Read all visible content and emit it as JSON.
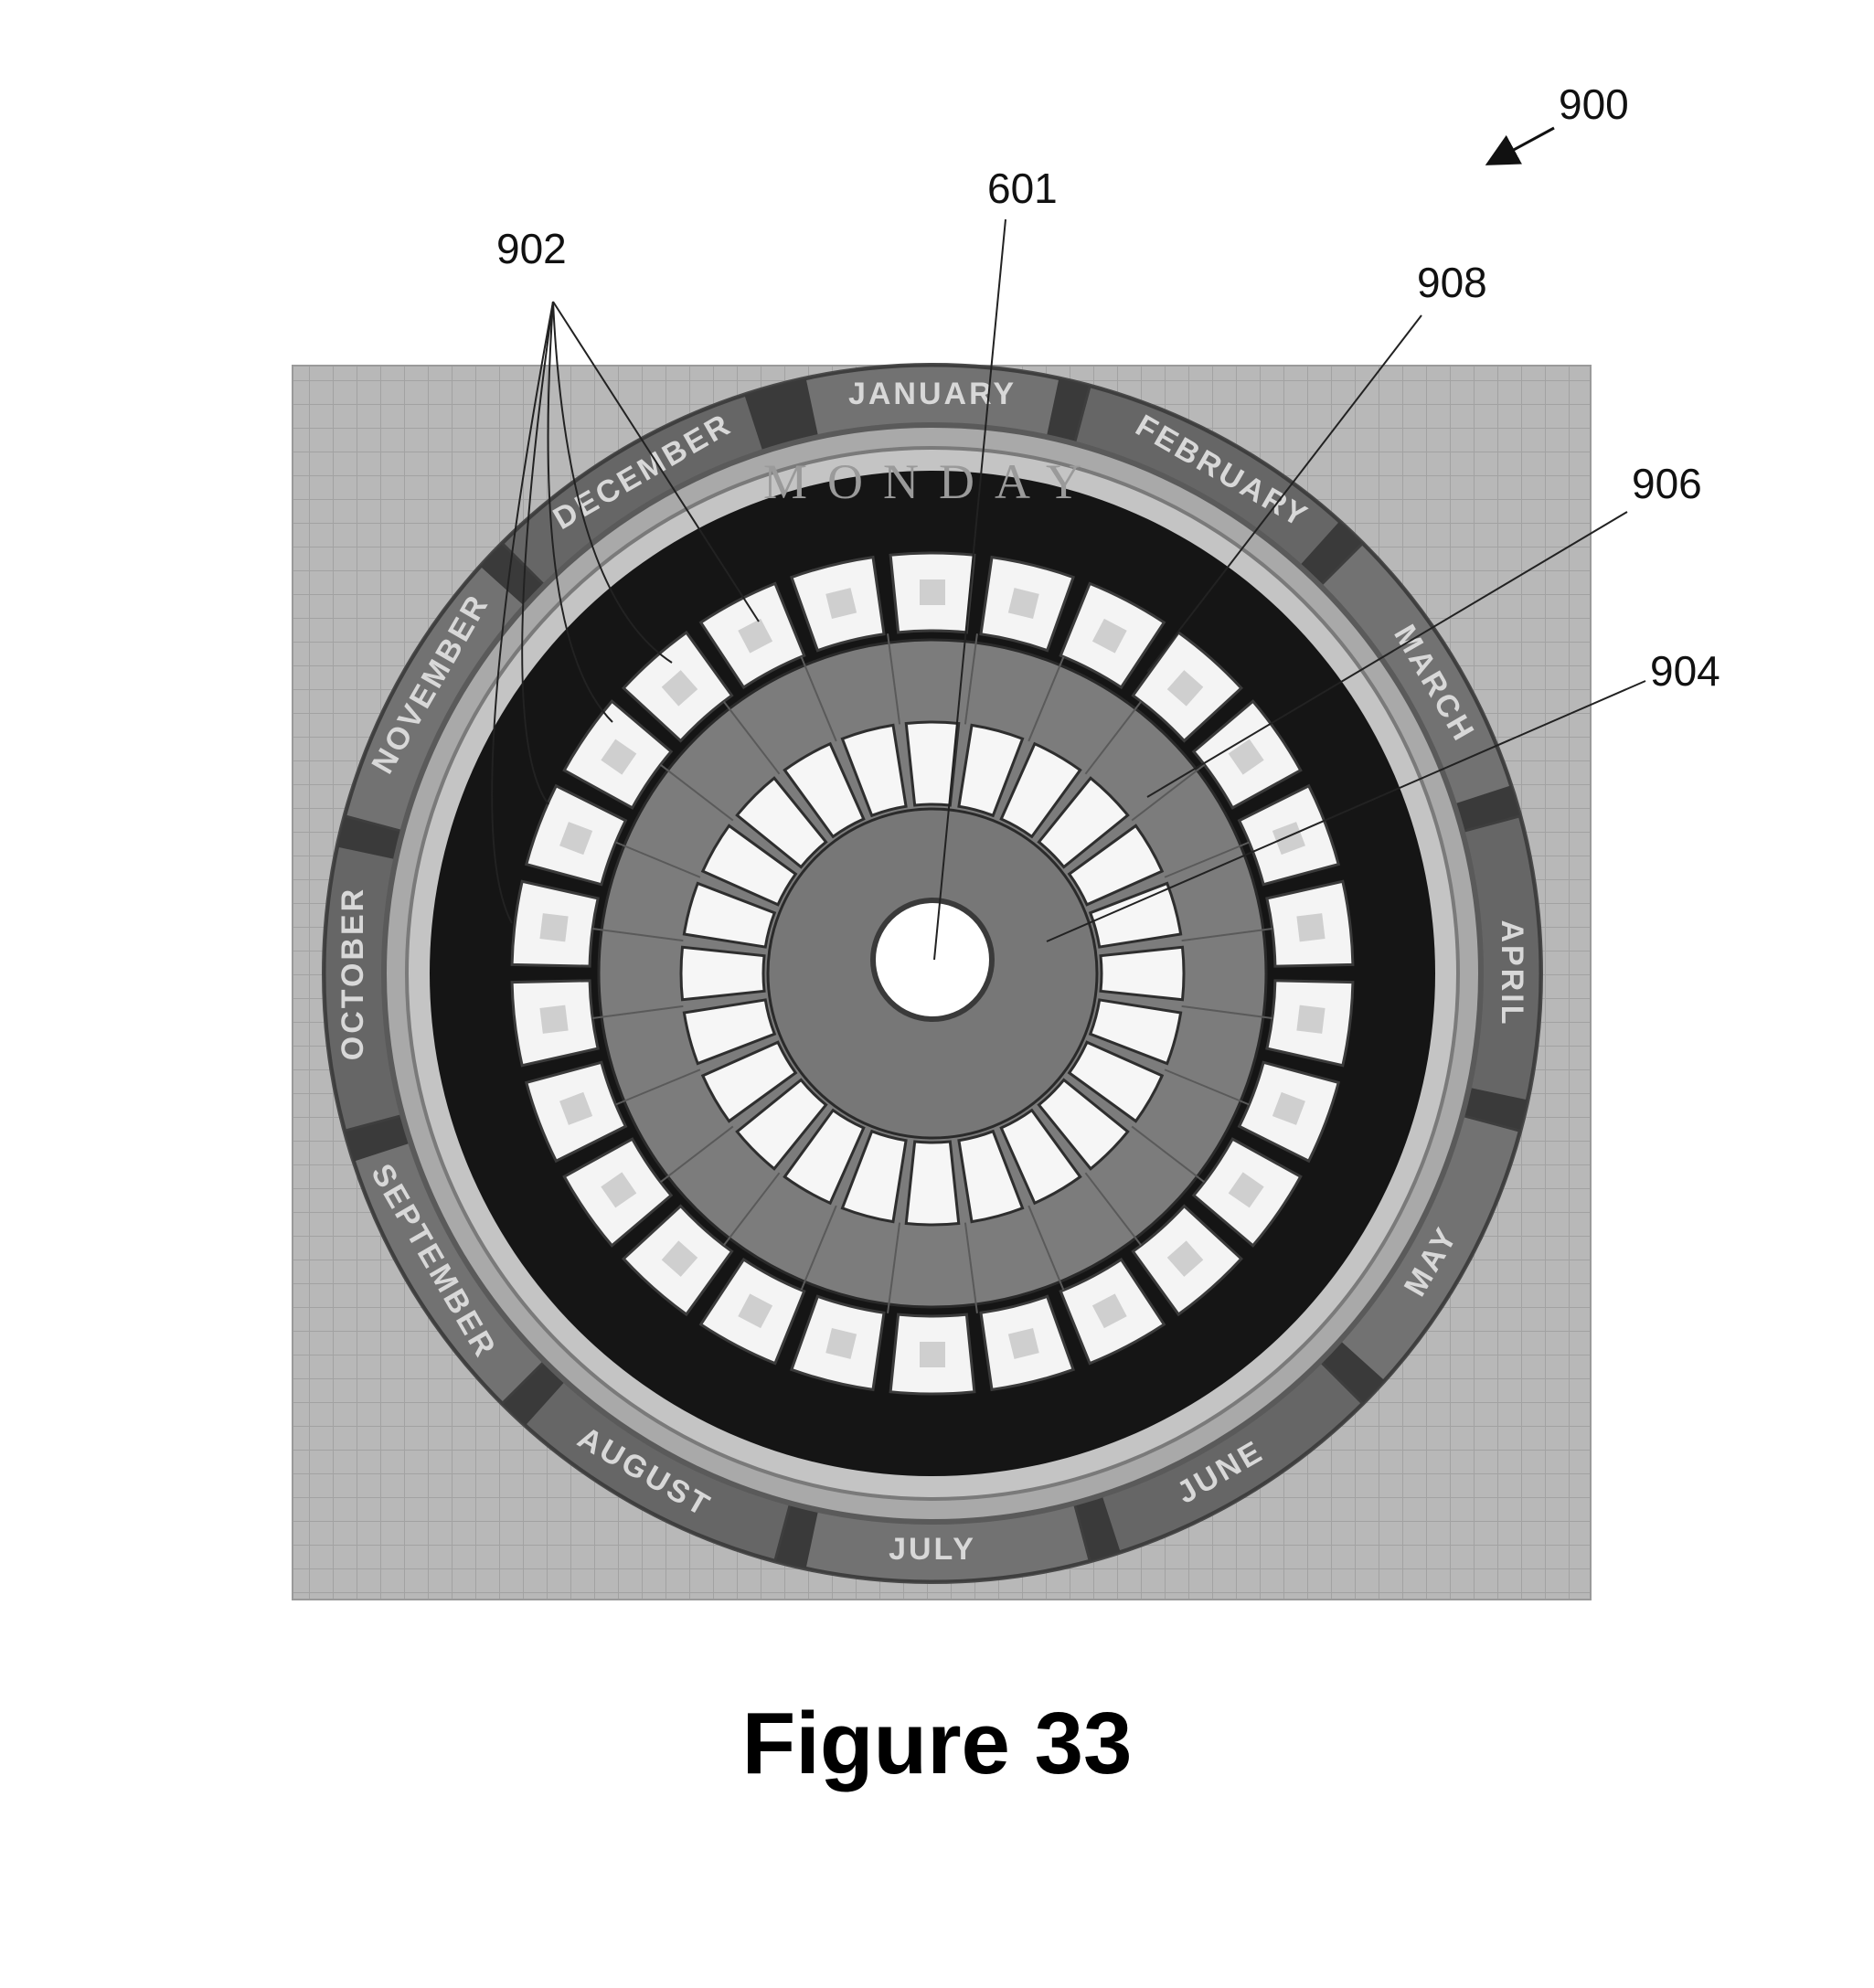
{
  "figure_ref": "900",
  "caption": "Figure 33",
  "day_label": "MONDAY",
  "months": [
    "JANUARY",
    "FEBRUARY",
    "MARCH",
    "APRIL",
    "MAY",
    "JUNE",
    "JULY",
    "AUGUST",
    "SEPTEMBER",
    "OCTOBER",
    "NOVEMBER",
    "DECEMBER"
  ],
  "callouts": {
    "center": "601",
    "outer_tiles": "902",
    "inner_hub": "904",
    "middle_ring": "906",
    "tile_ring": "908"
  },
  "colors": {
    "background_grid": "#b8b8b8",
    "month_band": "#6e6e6e",
    "dark_ring": "#151515",
    "tile": "#f4f4f4",
    "gray_ring": "#7c7c7c",
    "hub": "#777777",
    "center_hole": "#ffffff"
  },
  "counts": {
    "outer_tiles": 26,
    "inner_tiles": 24
  }
}
